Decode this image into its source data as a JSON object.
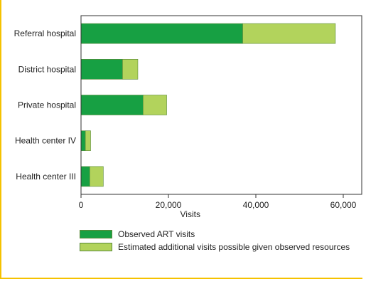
{
  "colors": {
    "frame": "#f5c200",
    "observed": "#17a043",
    "additional": "#b2d35c"
  },
  "chart_data": {
    "type": "bar",
    "orientation": "horizontal",
    "stacked": true,
    "categories": [
      "Referral hospital",
      "District hospital",
      "Private hospital",
      "Health center IV",
      "Health center III"
    ],
    "series": [
      {
        "name": "Observed ART visits",
        "values": [
          37000,
          9500,
          14200,
          1000,
          2000
        ]
      },
      {
        "name": "Estimated additional visits possible given observed resources",
        "values": [
          21200,
          3500,
          5400,
          1200,
          3100
        ]
      }
    ],
    "xlabel": "Visits",
    "xlim": [
      0,
      60000
    ],
    "xticks": [
      0,
      20000,
      40000,
      60000
    ],
    "xtick_labels": [
      "0",
      "20,000",
      "40,000",
      "60,000"
    ],
    "grid": false,
    "legend_position": "bottom"
  }
}
